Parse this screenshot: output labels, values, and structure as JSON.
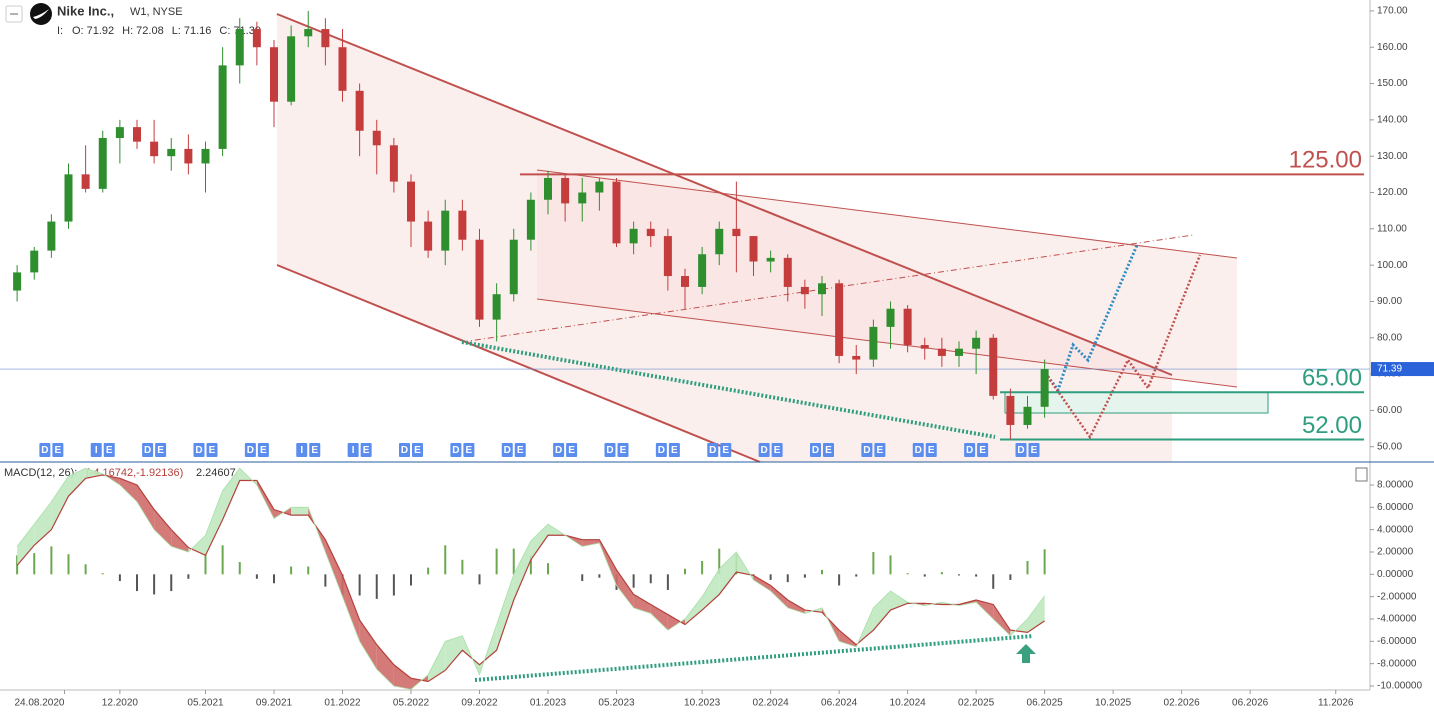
{
  "header": {
    "symbol": "Nike Inc.,",
    "meta": "W1, NYSE",
    "prefix": "I:",
    "ohlc": [
      {
        "key": "O:",
        "value": 71.92
      },
      {
        "key": "H:",
        "value": 72.08
      },
      {
        "key": "L:",
        "value": 71.16
      },
      {
        "key": "C:",
        "value": 71.39
      }
    ]
  },
  "chart_data": [
    {
      "type": "candlestick",
      "x": [
        "06.2020",
        "07.2020",
        "08.2020",
        "09.2020",
        "10.2020",
        "11.2020",
        "12.2020",
        "01.2021",
        "02.2021",
        "03.2021",
        "04.2021",
        "05.2021",
        "06.2021",
        "07.2021",
        "08.2021",
        "09.2021",
        "10.2021",
        "11.2021",
        "12.2021",
        "01.2022",
        "02.2022",
        "03.2022",
        "04.2022",
        "05.2022",
        "06.2022",
        "07.2022",
        "08.2022",
        "09.2022",
        "10.2022",
        "11.2022",
        "12.2022",
        "01.2023",
        "02.2023",
        "03.2023",
        "04.2023",
        "05.2023",
        "06.2023",
        "07.2023",
        "08.2023",
        "09.2023",
        "10.2023",
        "11.2023",
        "12.2023",
        "01.2024",
        "02.2024",
        "03.2024",
        "04.2024",
        "05.2024",
        "06.2024",
        "07.2024",
        "08.2024",
        "09.2024",
        "10.2024",
        "11.2024",
        "12.2024",
        "01.2025",
        "02.2025",
        "03.2025",
        "04.2025",
        "05.2025",
        "06.2025"
      ],
      "open": [
        93,
        98,
        104,
        112,
        125,
        121,
        135,
        138,
        134,
        130,
        132,
        128,
        132,
        155,
        165,
        160,
        145,
        163,
        165,
        160,
        148,
        137,
        133,
        123,
        112,
        104,
        115,
        107,
        85,
        92,
        107,
        118,
        124,
        117,
        120,
        123,
        106,
        110,
        108,
        97,
        94,
        103,
        110,
        108,
        101,
        102,
        94,
        92,
        95,
        75,
        74,
        83,
        88,
        78,
        77,
        75,
        77,
        80,
        64,
        56,
        61
      ],
      "high": [
        100,
        105,
        114,
        128,
        133,
        137,
        140,
        140,
        140,
        135,
        136,
        134,
        160,
        168,
        167,
        162,
        166,
        170,
        168,
        165,
        150,
        140,
        135,
        125,
        115,
        118,
        118,
        110,
        95,
        110,
        120,
        126,
        125,
        124,
        124,
        124,
        112,
        112,
        110,
        99,
        105,
        112,
        123,
        108,
        104,
        103,
        96,
        97,
        96,
        78,
        85,
        90,
        89,
        80,
        80,
        79,
        82,
        81,
        66,
        64,
        74
      ],
      "low": [
        90,
        96,
        102,
        110,
        120,
        120,
        128,
        132,
        128,
        126,
        125,
        120,
        130,
        150,
        155,
        138,
        144,
        160,
        155,
        145,
        130,
        125,
        120,
        105,
        102,
        100,
        104,
        83,
        79,
        90,
        104,
        114,
        112,
        112,
        115,
        105,
        103,
        105,
        93,
        88,
        92,
        100,
        98,
        97,
        98,
        90,
        88,
        86,
        73,
        70,
        72,
        77,
        76,
        74,
        72,
        72,
        70,
        63,
        52,
        55,
        58
      ],
      "close": [
        98,
        104,
        112,
        125,
        121,
        135,
        138,
        134,
        130,
        132,
        128,
        132,
        155,
        165,
        160,
        145,
        163,
        165,
        160,
        148,
        137,
        133,
        123,
        112,
        104,
        115,
        107,
        85,
        92,
        107,
        118,
        124,
        117,
        120,
        123,
        106,
        110,
        108,
        97,
        94,
        103,
        110,
        108,
        101,
        102,
        94,
        92,
        95,
        75,
        74,
        83,
        88,
        78,
        77,
        75,
        77,
        80,
        64,
        56,
        61,
        71.39
      ],
      "up_color": "#2f8f2f",
      "down_color": "#c43c3c",
      "xlim": [
        "05.2020",
        "01.2027"
      ],
      "ylim": [
        45.8,
        173
      ],
      "yticks": [
        {
          "value": 170,
          "label": "170.00"
        },
        {
          "value": 160,
          "label": "160.00"
        },
        {
          "value": 150,
          "label": "150.00"
        },
        {
          "value": 140,
          "label": "140.00"
        },
        {
          "value": 130,
          "label": "130.00"
        },
        {
          "value": 120,
          "label": "120.00"
        },
        {
          "value": 110,
          "label": "110.00"
        },
        {
          "value": 100,
          "label": "100.00"
        },
        {
          "value": 90,
          "label": "90.00"
        },
        {
          "value": 80,
          "label": "80.00"
        },
        {
          "value": 70,
          "label": "70.00"
        },
        {
          "value": 60,
          "label": "60.00"
        },
        {
          "value": 50,
          "label": "50.00"
        }
      ],
      "grid": false,
      "last_price": {
        "value": 71.39,
        "label": "71.39"
      },
      "levels": [
        {
          "value": 125,
          "label": "125.00",
          "color": "#c0504d"
        },
        {
          "value": 65,
          "label": "65.00",
          "color": "#2e9e7e"
        },
        {
          "value": 52,
          "label": "52.00",
          "color": "#2e9e7e"
        }
      ],
      "events": [
        {
          "x": "08.2020",
          "labels": [
            "D",
            "E"
          ]
        },
        {
          "x": "11.2020",
          "labels": [
            "I",
            "E"
          ]
        },
        {
          "x": "02.2021",
          "labels": [
            "D",
            "E"
          ]
        },
        {
          "x": "05.2021",
          "labels": [
            "D",
            "E"
          ]
        },
        {
          "x": "08.2021",
          "labels": [
            "D",
            "E"
          ]
        },
        {
          "x": "11.2021",
          "labels": [
            "I",
            "E"
          ]
        },
        {
          "x": "02.2022",
          "labels": [
            "I",
            "E"
          ]
        },
        {
          "x": "05.2022",
          "labels": [
            "D",
            "E"
          ]
        },
        {
          "x": "08.2022",
          "labels": [
            "D",
            "E"
          ]
        },
        {
          "x": "11.2022",
          "labels": [
            "D",
            "E"
          ]
        },
        {
          "x": "02.2023",
          "labels": [
            "D",
            "E"
          ]
        },
        {
          "x": "05.2023",
          "labels": [
            "D",
            "E"
          ]
        },
        {
          "x": "08.2023",
          "labels": [
            "D",
            "E"
          ]
        },
        {
          "x": "11.2023",
          "labels": [
            "D",
            "E"
          ]
        },
        {
          "x": "02.2024",
          "labels": [
            "D",
            "E"
          ]
        },
        {
          "x": "05.2024",
          "labels": [
            "D",
            "E"
          ]
        },
        {
          "x": "08.2024",
          "labels": [
            "D",
            "E"
          ]
        },
        {
          "x": "11.2024",
          "labels": [
            "D",
            "E"
          ]
        },
        {
          "x": "02.2025",
          "labels": [
            "D",
            "E"
          ]
        },
        {
          "x": "05.2025",
          "labels": [
            "D",
            "E"
          ]
        }
      ]
    },
    {
      "type": "macd",
      "title": "MACD(12, 26):",
      "legend_values": "(-4.16742,-1.92136)",
      "histogram_label": "2.24607",
      "x": [
        "06.2020",
        "07.2020",
        "08.2020",
        "09.2020",
        "10.2020",
        "11.2020",
        "12.2020",
        "01.2021",
        "02.2021",
        "03.2021",
        "04.2021",
        "05.2021",
        "06.2021",
        "07.2021",
        "08.2021",
        "09.2021",
        "10.2021",
        "11.2021",
        "12.2021",
        "01.2022",
        "02.2022",
        "03.2022",
        "04.2022",
        "05.2022",
        "06.2022",
        "07.2022",
        "08.2022",
        "09.2022",
        "10.2022",
        "11.2022",
        "12.2022",
        "01.2023",
        "02.2023",
        "03.2023",
        "04.2023",
        "05.2023",
        "06.2023",
        "07.2023",
        "08.2023",
        "09.2023",
        "10.2023",
        "11.2023",
        "12.2023",
        "01.2024",
        "02.2024",
        "03.2024",
        "04.2024",
        "05.2024",
        "06.2024",
        "07.2024",
        "08.2024",
        "09.2024",
        "10.2024",
        "11.2024",
        "12.2024",
        "01.2025",
        "02.2025",
        "03.2025",
        "04.2025",
        "05.2025",
        "06.2025"
      ],
      "series": [
        {
          "name": "MACD",
          "color": "#b5403c",
          "values": [
            0.8,
            2.6,
            4,
            7,
            8.6,
            8.9,
            8.6,
            8,
            5.8,
            4,
            2.4,
            1.7,
            4.9,
            8.4,
            8.4,
            5.8,
            5.3,
            5.3,
            3.1,
            -0.1,
            -4.1,
            -6.3,
            -8.1,
            -9.3,
            -9.6,
            -8.6,
            -6.8,
            -8.1,
            -6.8,
            -2.3,
            1.3,
            3.5,
            3.5,
            3.1,
            3.1,
            0.4,
            -1.8,
            -2.7,
            -3.6,
            -4.5,
            -3.2,
            -1.8,
            0.2,
            -0.1,
            -1,
            -2.3,
            -3.2,
            -3.4,
            -5,
            -6.3,
            -5,
            -3.2,
            -2.6,
            -2.6,
            -2.7,
            -2.7,
            -2.3,
            -2.7,
            -5,
            -5.2,
            -4.16742
          ]
        },
        {
          "name": "Signal",
          "color": "#a8e0a8",
          "values": [
            2.5,
            4.5,
            6.5,
            8.8,
            9.5,
            9,
            8,
            6.5,
            4,
            2.5,
            2,
            3.5,
            7.5,
            9.5,
            8,
            5,
            6,
            6,
            2,
            -2,
            -6,
            -8.5,
            -10,
            -10.3,
            -9,
            -6,
            -5.5,
            -9,
            -4.5,
            0,
            3,
            4.5,
            3.5,
            2.5,
            2.8,
            -1,
            -3,
            -3.5,
            -5,
            -4,
            -2,
            0.5,
            2,
            -0.5,
            -1.5,
            -3,
            -3.5,
            -3,
            -6,
            -6.5,
            -3,
            -1.5,
            -2.5,
            -2.8,
            -2.5,
            -2.8,
            -2.5,
            -4,
            -5.5,
            -4,
            -1.92136
          ]
        }
      ],
      "histogram": {
        "up_color": "#6aa84f",
        "down_color": "#555555",
        "values": [
          1.7,
          1.9,
          2.5,
          1.8,
          0.9,
          0.1,
          -0.6,
          -1.5,
          -1.8,
          -1.5,
          -0.4,
          1.8,
          2.6,
          1.1,
          -0.4,
          -0.8,
          0.7,
          0.7,
          -1.1,
          -1.9,
          -1.9,
          -2.2,
          -1.9,
          -1,
          0.6,
          2.6,
          1.3,
          -0.9,
          2.3,
          2.3,
          1.7,
          1,
          0,
          -0.6,
          -0.3,
          -1.4,
          -1.2,
          -0.8,
          -1.4,
          0.5,
          1.2,
          2.3,
          1.8,
          -0.4,
          -0.5,
          -0.7,
          -0.3,
          0.4,
          -1,
          -0.2,
          2,
          1.7,
          0.1,
          -0.2,
          0.2,
          -0.1,
          -0.2,
          -1.3,
          -0.5,
          1.2,
          2.24607
        ]
      },
      "fill_up_color": "#bfe8bf",
      "fill_down_color": "#cf6c6a",
      "xlim": [
        "05.2020",
        "01.2027"
      ],
      "ylim": [
        -10.36,
        9.97
      ],
      "yticks": [
        {
          "value": 8,
          "label": "8.00000"
        },
        {
          "value": 6,
          "label": "6.00000"
        },
        {
          "value": 4,
          "label": "4.00000"
        },
        {
          "value": 2,
          "label": "2.00000"
        },
        {
          "value": 0,
          "label": "0.00000"
        },
        {
          "value": -2,
          "label": "-2.00000"
        },
        {
          "value": -4,
          "label": "-4.00000"
        },
        {
          "value": -6,
          "label": "-6.00000"
        },
        {
          "value": -8,
          "label": "-8.00000"
        },
        {
          "value": -10,
          "label": "-10.00000"
        }
      ],
      "xticks": [
        "24.08.2020",
        "12.2020",
        "05.2021",
        "09.2021",
        "01.2022",
        "05.2022",
        "09.2022",
        "01.2023",
        "05.2023",
        "10.2023",
        "02.2024",
        "06.2024",
        "10.2024",
        "02.2025",
        "06.2025",
        "10.2025",
        "02.2026",
        "06.2026",
        "11.2026"
      ]
    }
  ]
}
